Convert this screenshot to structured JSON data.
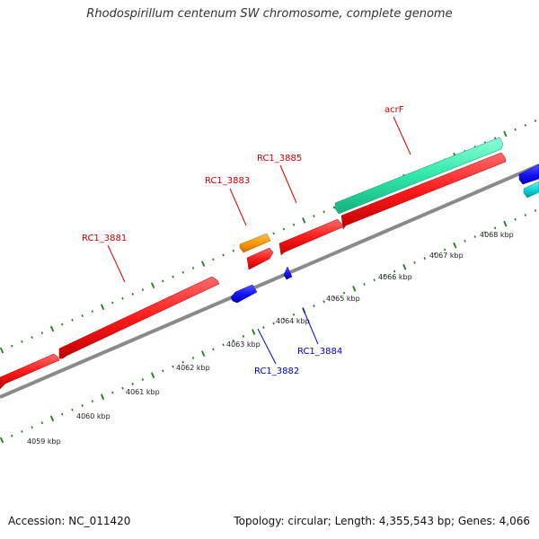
{
  "title": "Rhodospirillum centenum SW chromosome, complete genome",
  "footer": {
    "accession": "Accession: NC_011420",
    "stats": "Topology: circular; Length: 4,355,543 bp; Genes: 4,066"
  },
  "colors": {
    "backbone": "#8a8a8a",
    "tick": "#1e7a1e",
    "red": "#ff1a1a",
    "blue": "#1414ff",
    "orange": "#ff9a00",
    "teal": "#2ee8a8",
    "cyan": "#10d6d6",
    "label_red": "#cc0000",
    "label_blue": "#0000cc"
  },
  "scale_labels": [
    "4059 kbp",
    "4060 kbp",
    "4061 kbp",
    "4062 kbp",
    "4063 kbp",
    "4064 kbp",
    "4065 kbp",
    "4066 kbp",
    "4067 kbp",
    "4068 kbp"
  ],
  "gene_labels": [
    {
      "text": "RC1_3881",
      "color": "red"
    },
    {
      "text": "RC1_3883",
      "color": "red"
    },
    {
      "text": "RC1_3885",
      "color": "red"
    },
    {
      "text": "acrF",
      "color": "red"
    },
    {
      "text": "RC1_3882",
      "color": "blue"
    },
    {
      "text": "RC1_3884",
      "color": "blue"
    }
  ]
}
